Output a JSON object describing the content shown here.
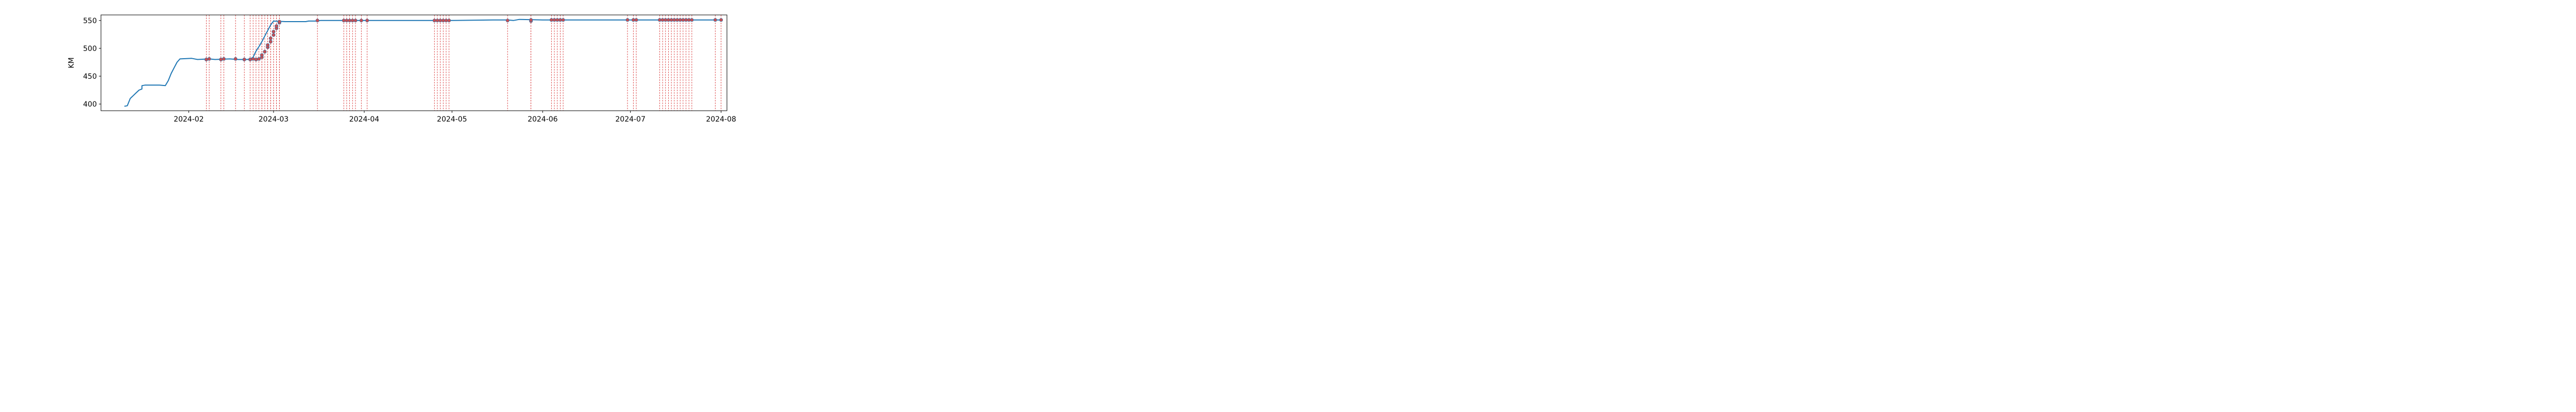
{
  "chart_data": {
    "type": "line",
    "ylabel": "KM",
    "ylim": [
      388,
      560
    ],
    "xlim": [
      "2024-01-02",
      "2024-08-03"
    ],
    "grid": false,
    "colors": {
      "line": "#1f77b4",
      "event": "#d62728",
      "marker": "#c44e52"
    },
    "x_ticks": [
      "2024-02",
      "2024-03",
      "2024-04",
      "2024-05",
      "2024-06",
      "2024-07",
      "2024-08"
    ],
    "x_tick_dates": [
      "2024-02-01",
      "2024-03-01",
      "2024-04-01",
      "2024-05-01",
      "2024-06-01",
      "2024-07-01",
      "2024-08-01"
    ],
    "y_ticks": [
      400,
      450,
      500,
      550
    ],
    "series": [
      {
        "points": [
          [
            "2024-01-10",
            396
          ],
          [
            "2024-01-11",
            397
          ],
          [
            "2024-01-12",
            410
          ],
          [
            "2024-01-13",
            415
          ],
          [
            "2024-01-14",
            420
          ],
          [
            "2024-01-15",
            425
          ],
          [
            "2024-01-16",
            427
          ],
          [
            "2024-01-16",
            433
          ],
          [
            "2024-01-17",
            434
          ],
          [
            "2024-01-22",
            434
          ],
          [
            "2024-01-24",
            433
          ],
          [
            "2024-01-25",
            442
          ],
          [
            "2024-01-26",
            455
          ],
          [
            "2024-01-27",
            465
          ],
          [
            "2024-01-28",
            475
          ],
          [
            "2024-01-29",
            481
          ],
          [
            "2024-02-02",
            482
          ],
          [
            "2024-02-04",
            480
          ],
          [
            "2024-02-08",
            481
          ],
          [
            "2024-02-10",
            480
          ],
          [
            "2024-02-15",
            481
          ],
          [
            "2024-02-18",
            480
          ],
          [
            "2024-02-21",
            480
          ],
          [
            "2024-02-22",
            481
          ],
          [
            "2024-02-23",
            484
          ],
          [
            "2024-02-24",
            495
          ],
          [
            "2024-02-25",
            503
          ],
          [
            "2024-02-26",
            512
          ],
          [
            "2024-02-27",
            522
          ],
          [
            "2024-02-28",
            532
          ],
          [
            "2024-02-29",
            542
          ],
          [
            "2024-03-01",
            549
          ],
          [
            "2024-03-05",
            548
          ],
          [
            "2024-03-12",
            548
          ],
          [
            "2024-03-13",
            549
          ],
          [
            "2024-03-16",
            549
          ],
          [
            "2024-03-17",
            550
          ],
          [
            "2024-04-01",
            550
          ],
          [
            "2024-04-15",
            550
          ],
          [
            "2024-05-01",
            550
          ],
          [
            "2024-05-15",
            551
          ],
          [
            "2024-05-20",
            551
          ],
          [
            "2024-05-22",
            550
          ],
          [
            "2024-05-24",
            552
          ],
          [
            "2024-06-01",
            551
          ],
          [
            "2024-06-15",
            551
          ],
          [
            "2024-07-01",
            551
          ],
          [
            "2024-07-15",
            551
          ],
          [
            "2024-08-01",
            551
          ]
        ]
      }
    ],
    "events": [
      {
        "date": "2024-02-07",
        "value": 480
      },
      {
        "date": "2024-02-08",
        "value": 481
      },
      {
        "date": "2024-02-12",
        "value": 480
      },
      {
        "date": "2024-02-13",
        "value": 481
      },
      {
        "date": "2024-02-17",
        "value": 481
      },
      {
        "date": "2024-02-20",
        "value": 480
      },
      {
        "date": "2024-02-22",
        "value": 480
      },
      {
        "date": "2024-02-23",
        "value": 481
      },
      {
        "date": "2024-02-24",
        "value": 480
      },
      {
        "date": "2024-02-25",
        "value": 481
      },
      {
        "date": "2024-02-26",
        "value": 484
      },
      {
        "date": "2024-02-26",
        "value": 488
      },
      {
        "date": "2024-02-27",
        "value": 494
      },
      {
        "date": "2024-02-28",
        "value": 502
      },
      {
        "date": "2024-02-28",
        "value": 506
      },
      {
        "date": "2024-02-29",
        "value": 512
      },
      {
        "date": "2024-02-29",
        "value": 518
      },
      {
        "date": "2024-03-01",
        "value": 524
      },
      {
        "date": "2024-03-01",
        "value": 530
      },
      {
        "date": "2024-03-02",
        "value": 536
      },
      {
        "date": "2024-03-02",
        "value": 540
      },
      {
        "date": "2024-03-03",
        "value": 546
      },
      {
        "date": "2024-03-03",
        "value": 548
      },
      {
        "date": "2024-03-16",
        "value": 550
      },
      {
        "date": "2024-03-25",
        "value": 550
      },
      {
        "date": "2024-03-26",
        "value": 550
      },
      {
        "date": "2024-03-27",
        "value": 550
      },
      {
        "date": "2024-03-28",
        "value": 550
      },
      {
        "date": "2024-03-29",
        "value": 550
      },
      {
        "date": "2024-03-31",
        "value": 550
      },
      {
        "date": "2024-04-02",
        "value": 550
      },
      {
        "date": "2024-04-25",
        "value": 550
      },
      {
        "date": "2024-04-26",
        "value": 550
      },
      {
        "date": "2024-04-27",
        "value": 550
      },
      {
        "date": "2024-04-28",
        "value": 550
      },
      {
        "date": "2024-04-29",
        "value": 550
      },
      {
        "date": "2024-04-30",
        "value": 550
      },
      {
        "date": "2024-05-20",
        "value": 550
      },
      {
        "date": "2024-05-28",
        "value": 549
      },
      {
        "date": "2024-05-28",
        "value": 551
      },
      {
        "date": "2024-06-04",
        "value": 551
      },
      {
        "date": "2024-06-05",
        "value": 551
      },
      {
        "date": "2024-06-06",
        "value": 551
      },
      {
        "date": "2024-06-07",
        "value": 551
      },
      {
        "date": "2024-06-08",
        "value": 551
      },
      {
        "date": "2024-06-30",
        "value": 551
      },
      {
        "date": "2024-07-02",
        "value": 551
      },
      {
        "date": "2024-07-03",
        "value": 551
      },
      {
        "date": "2024-07-11",
        "value": 551
      },
      {
        "date": "2024-07-12",
        "value": 551
      },
      {
        "date": "2024-07-13",
        "value": 551
      },
      {
        "date": "2024-07-14",
        "value": 551
      },
      {
        "date": "2024-07-15",
        "value": 551
      },
      {
        "date": "2024-07-16",
        "value": 551
      },
      {
        "date": "2024-07-17",
        "value": 551
      },
      {
        "date": "2024-07-18",
        "value": 551
      },
      {
        "date": "2024-07-19",
        "value": 551
      },
      {
        "date": "2024-07-20",
        "value": 551
      },
      {
        "date": "2024-07-21",
        "value": 551
      },
      {
        "date": "2024-07-22",
        "value": 551
      },
      {
        "date": "2024-07-30",
        "value": 551
      },
      {
        "date": "2024-08-01",
        "value": 551
      }
    ]
  }
}
